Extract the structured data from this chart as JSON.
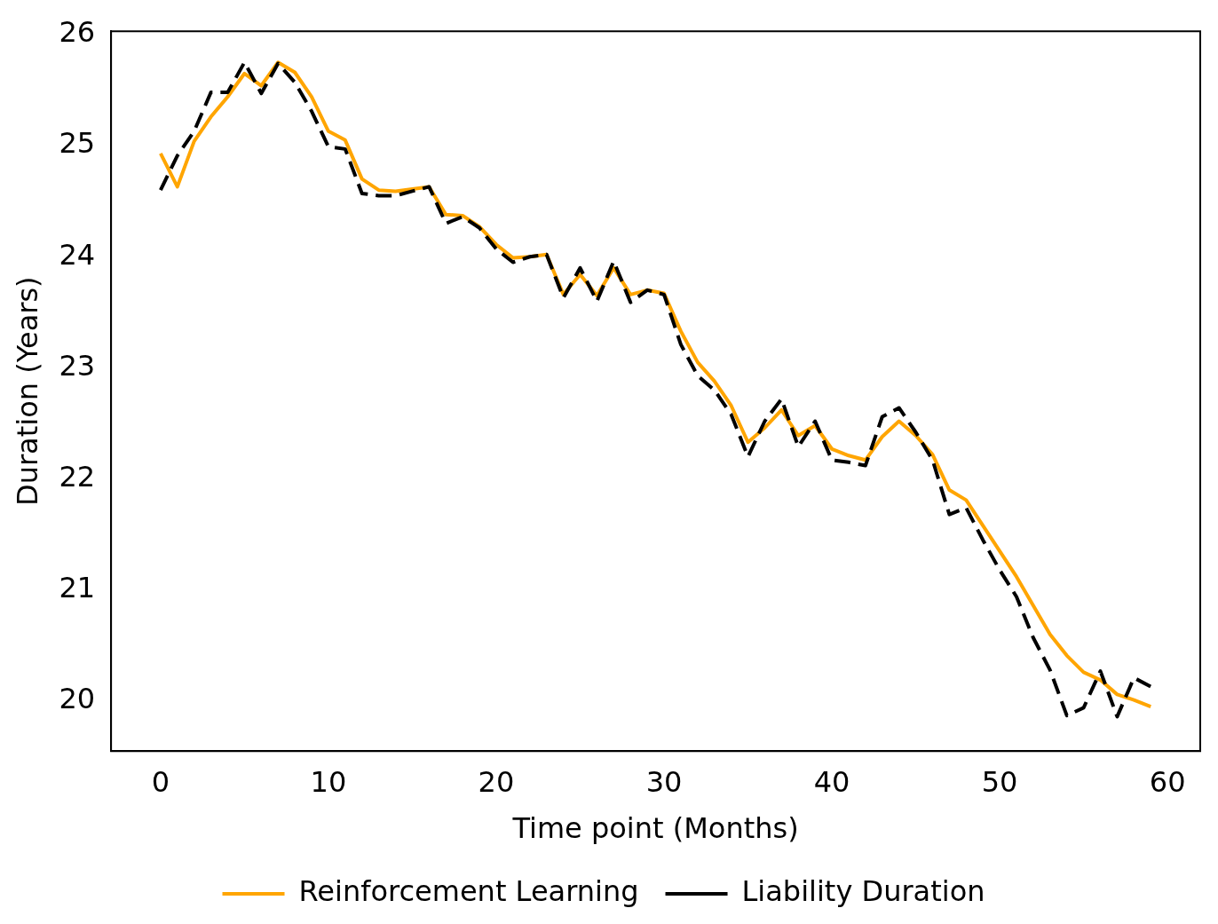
{
  "chart_data": {
    "type": "line",
    "xlabel": "Time point (Months)",
    "ylabel": "Duration (Years)",
    "x": [
      0,
      1,
      2,
      3,
      4,
      5,
      6,
      7,
      8,
      9,
      10,
      11,
      12,
      13,
      14,
      15,
      16,
      17,
      18,
      19,
      20,
      21,
      22,
      23,
      24,
      25,
      26,
      27,
      28,
      29,
      30,
      31,
      32,
      33,
      34,
      35,
      36,
      37,
      38,
      39,
      40,
      41,
      42,
      43,
      44,
      45,
      46,
      47,
      48,
      49,
      50,
      51,
      52,
      53,
      54,
      55,
      56,
      57,
      58,
      59
    ],
    "series": [
      {
        "name": "Reinforcement Learning",
        "color": "#ffa500",
        "line_style": "solid",
        "values": [
          24.93,
          24.63,
          25.04,
          25.26,
          25.44,
          25.65,
          25.54,
          25.75,
          25.66,
          25.44,
          25.13,
          25.05,
          24.7,
          24.6,
          24.59,
          24.61,
          24.63,
          24.38,
          24.37,
          24.27,
          24.11,
          23.99,
          24.0,
          24.02,
          23.66,
          23.84,
          23.65,
          23.9,
          23.66,
          23.7,
          23.67,
          23.33,
          23.05,
          22.88,
          22.66,
          22.33,
          22.46,
          22.62,
          22.39,
          22.48,
          22.27,
          22.21,
          22.17,
          22.38,
          22.52,
          22.39,
          22.22,
          21.9,
          21.81,
          21.58,
          21.35,
          21.12,
          20.86,
          20.6,
          20.41,
          20.26,
          20.19,
          20.06,
          20.01,
          19.95
        ]
      },
      {
        "name": "Liability Duration",
        "color": "#000000",
        "line_style": "dashed",
        "values": [
          24.6,
          24.91,
          25.13,
          25.48,
          25.48,
          25.75,
          25.47,
          25.74,
          25.57,
          25.31,
          24.99,
          24.97,
          24.57,
          24.55,
          24.55,
          24.59,
          24.63,
          24.3,
          24.36,
          24.26,
          24.07,
          23.95,
          24.0,
          24.02,
          23.63,
          23.9,
          23.6,
          23.96,
          23.59,
          23.7,
          23.66,
          23.21,
          22.93,
          22.8,
          22.58,
          22.2,
          22.52,
          22.72,
          22.29,
          22.52,
          22.17,
          22.15,
          22.12,
          22.56,
          22.64,
          22.42,
          22.17,
          21.68,
          21.74,
          21.45,
          21.18,
          20.94,
          20.57,
          20.28,
          19.87,
          19.94,
          20.27,
          19.86,
          20.21,
          20.13
        ]
      }
    ],
    "xlim": [
      -2.95,
      61.95
    ],
    "ylim": [
      19.55,
      26.03
    ],
    "xticks": [
      0,
      10,
      20,
      30,
      40,
      50,
      60
    ],
    "yticks": [
      20,
      21,
      22,
      23,
      24,
      25,
      26
    ],
    "grid": false,
    "legend": "bottom",
    "marker": "none"
  }
}
